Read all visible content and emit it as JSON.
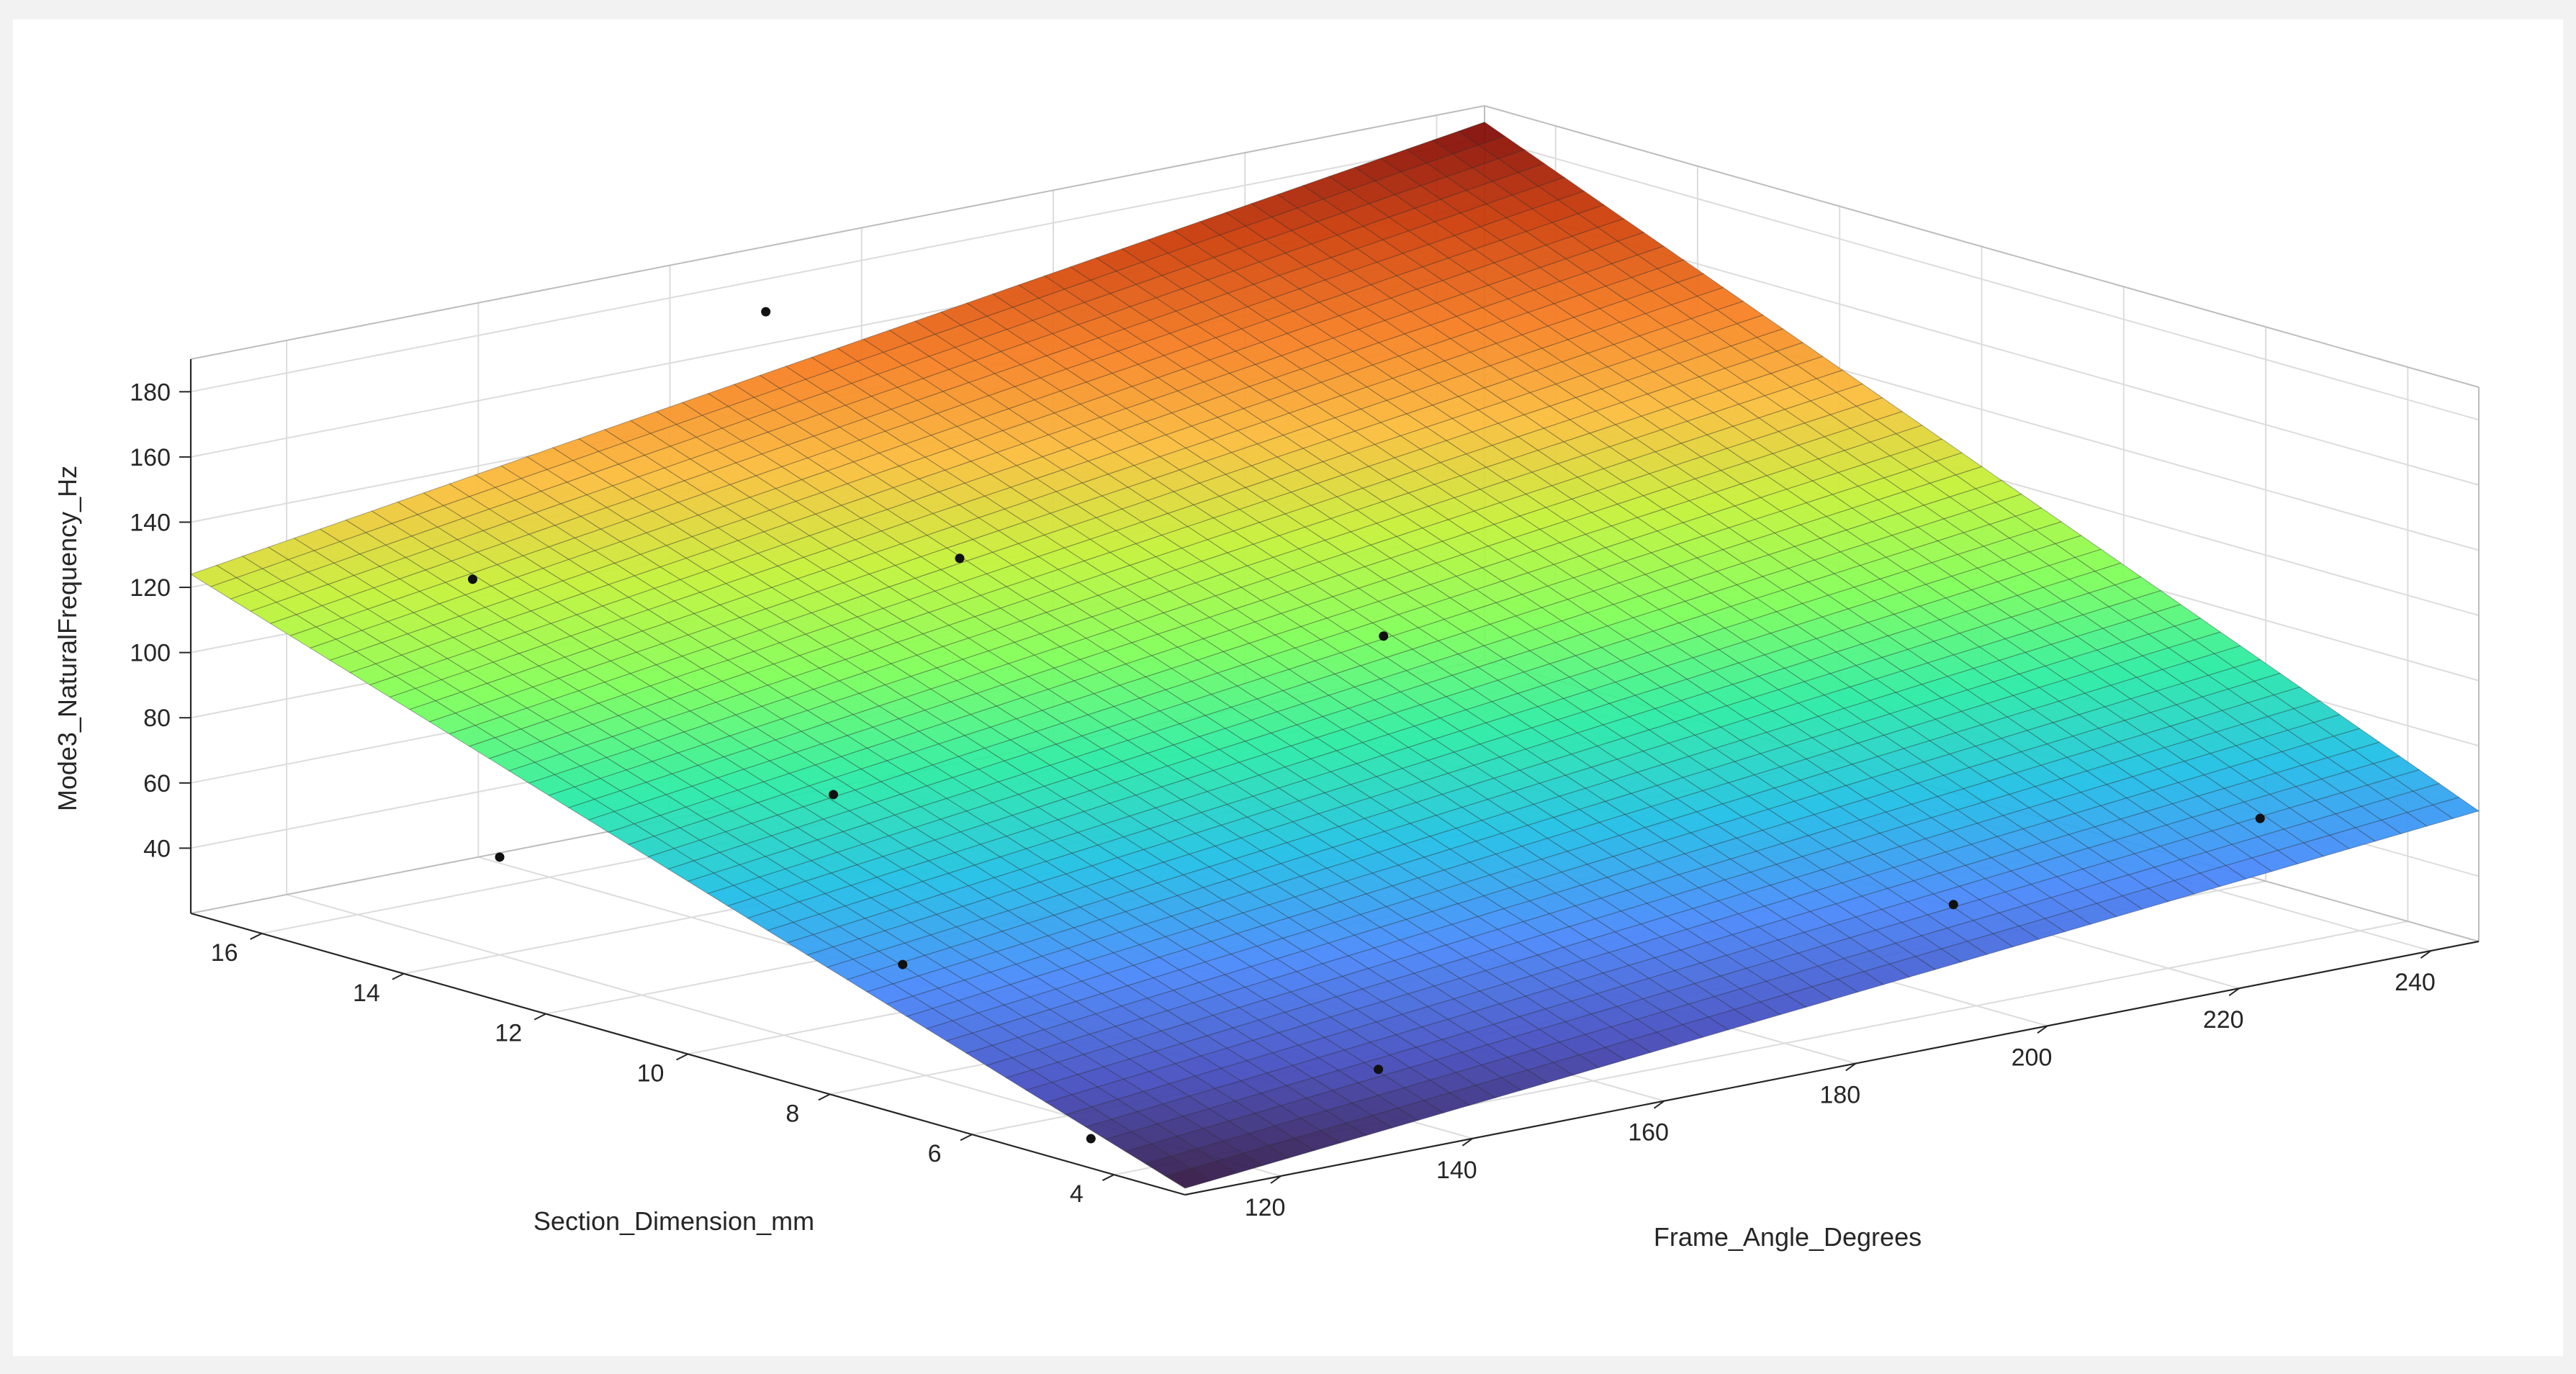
{
  "chart_data": {
    "type": "surface",
    "title": "",
    "xlabel": "Frame_Angle_Degrees",
    "ylabel": "Section_Dimension_mm",
    "zlabel": "Mode3_NaturalFrequency_Hz",
    "xlim": [
      110,
      245
    ],
    "ylim": [
      3,
      17
    ],
    "zlim": [
      20,
      190
    ],
    "xticks": [
      120,
      140,
      160,
      180,
      200,
      220,
      240
    ],
    "yticks": [
      4,
      6,
      8,
      10,
      12,
      14,
      16
    ],
    "zticks": [
      40,
      60,
      80,
      100,
      120,
      140,
      160,
      180
    ],
    "grid": true,
    "colormap": "turbo",
    "surface_grid": {
      "x": [
        110,
        245
      ],
      "y": [
        3,
        17
      ],
      "z": [
        [
          22,
          60
        ],
        [
          124,
          185
        ]
      ],
      "mesh_lines": 50
    },
    "points": [
      {
        "x": 115,
        "y": 5,
        "z": 22
      },
      {
        "x": 145,
        "y": 5,
        "z": 26
      },
      {
        "x": 205,
        "y": 5,
        "z": 42
      },
      {
        "x": 237,
        "y": 5,
        "z": 50
      },
      {
        "x": 125,
        "y": 9,
        "z": 45
      },
      {
        "x": 140,
        "y": 12,
        "z": 70
      },
      {
        "x": 190,
        "y": 11,
        "z": 96
      },
      {
        "x": 120,
        "y": 14,
        "z": 50
      },
      {
        "x": 132,
        "y": 16,
        "z": 116
      },
      {
        "x": 168,
        "y": 14,
        "z": 114
      },
      {
        "x": 170,
        "y": 17,
        "z": 170
      }
    ]
  }
}
